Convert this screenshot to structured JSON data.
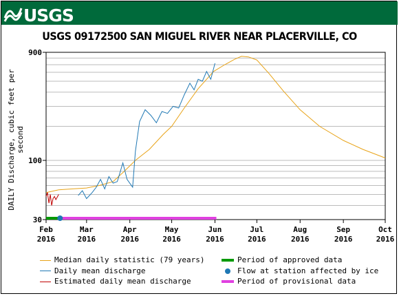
{
  "banner": {
    "logo_text": "USGS"
  },
  "chart_data": {
    "type": "line",
    "title": "USGS 09172500 SAN MIGUEL RIVER NEAR PLACERVILLE, CO",
    "ylabel": "DAILY Discharge, cubic feet per second",
    "xlabel": "",
    "yscale": "log",
    "ylim": [
      30,
      900
    ],
    "y_ticks": [
      "900",
      "100",
      "30"
    ],
    "x_ticks": [
      {
        "month": "Feb",
        "year": "2016"
      },
      {
        "month": "Mar",
        "year": "2016"
      },
      {
        "month": "Apr",
        "year": "2016"
      },
      {
        "month": "May",
        "year": "2016"
      },
      {
        "month": "Jun",
        "year": "2016"
      },
      {
        "month": "Jul",
        "year": "2016"
      },
      {
        "month": "Aug",
        "year": "2016"
      },
      {
        "month": "Sep",
        "year": "2016"
      },
      {
        "month": "Oct",
        "year": "2016"
      }
    ],
    "xlim": [
      "2016-02-01",
      "2016-10-01"
    ],
    "grid": true,
    "series": [
      {
        "name": "Median daily statistic (79 years)",
        "color": "#e8a317",
        "points": [
          [
            "2016-02-01",
            52
          ],
          [
            "2016-02-10",
            55
          ],
          [
            "2016-02-20",
            56
          ],
          [
            "2016-03-01",
            57
          ],
          [
            "2016-03-10",
            60
          ],
          [
            "2016-03-20",
            65
          ],
          [
            "2016-03-28",
            80
          ],
          [
            "2016-04-05",
            100
          ],
          [
            "2016-04-15",
            125
          ],
          [
            "2016-04-25",
            170
          ],
          [
            "2016-05-01",
            200
          ],
          [
            "2016-05-10",
            290
          ],
          [
            "2016-05-20",
            430
          ],
          [
            "2016-05-31",
            610
          ],
          [
            "2016-06-08",
            700
          ],
          [
            "2016-06-15",
            780
          ],
          [
            "2016-06-20",
            830
          ],
          [
            "2016-06-25",
            820
          ],
          [
            "2016-07-01",
            770
          ],
          [
            "2016-07-10",
            580
          ],
          [
            "2016-07-20",
            410
          ],
          [
            "2016-08-01",
            280
          ],
          [
            "2016-08-15",
            200
          ],
          [
            "2016-09-01",
            150
          ],
          [
            "2016-09-15",
            125
          ],
          [
            "2016-10-01",
            105
          ]
        ]
      },
      {
        "name": "Daily mean discharge",
        "color": "#1f78b4",
        "points": [
          [
            "2016-02-24",
            49
          ],
          [
            "2016-02-27",
            54
          ],
          [
            "2016-03-01",
            46
          ],
          [
            "2016-03-05",
            52
          ],
          [
            "2016-03-08",
            58
          ],
          [
            "2016-03-11",
            68
          ],
          [
            "2016-03-14",
            56
          ],
          [
            "2016-03-17",
            72
          ],
          [
            "2016-03-20",
            63
          ],
          [
            "2016-03-23",
            65
          ],
          [
            "2016-03-27",
            95
          ],
          [
            "2016-03-30",
            68
          ],
          [
            "2016-04-03",
            58
          ],
          [
            "2016-04-05",
            120
          ],
          [
            "2016-04-08",
            220
          ],
          [
            "2016-04-12",
            280
          ],
          [
            "2016-04-16",
            250
          ],
          [
            "2016-04-20",
            215
          ],
          [
            "2016-04-24",
            270
          ],
          [
            "2016-04-28",
            260
          ],
          [
            "2016-05-02",
            300
          ],
          [
            "2016-05-06",
            290
          ],
          [
            "2016-05-10",
            380
          ],
          [
            "2016-05-14",
            480
          ],
          [
            "2016-05-17",
            420
          ],
          [
            "2016-05-20",
            520
          ],
          [
            "2016-05-23",
            500
          ],
          [
            "2016-05-26",
            610
          ],
          [
            "2016-05-29",
            520
          ],
          [
            "2016-06-01",
            720
          ]
        ]
      },
      {
        "name": "Estimated daily mean discharge",
        "color": "#c00000",
        "points": [
          [
            "2016-02-01",
            48
          ],
          [
            "2016-02-02",
            52
          ],
          [
            "2016-02-03",
            42
          ],
          [
            "2016-02-04",
            50
          ],
          [
            "2016-02-05",
            40
          ],
          [
            "2016-02-06",
            46
          ],
          [
            "2016-02-07",
            48
          ],
          [
            "2016-02-08",
            45
          ],
          [
            "2016-02-10",
            50
          ]
        ]
      }
    ],
    "periods": [
      {
        "name": "Period of approved data",
        "color": "#009900",
        "start": "2016-02-01",
        "end": "2016-02-10"
      },
      {
        "name": "Period of provisional data",
        "color": "#e040e0",
        "start": "2016-02-10",
        "end": "2016-06-02"
      }
    ],
    "markers": [
      {
        "name": "Flow at station affected by ice",
        "color": "#1f78b4",
        "date": "2016-02-11"
      }
    ]
  },
  "legend": {
    "left": [
      {
        "label": "Median daily statistic (79 years)",
        "color": "#e8a317",
        "kind": "line"
      },
      {
        "label": "Daily mean discharge",
        "color": "#1f78b4",
        "kind": "line"
      },
      {
        "label": "Estimated daily mean discharge",
        "color": "#c00000",
        "kind": "line"
      }
    ],
    "right": [
      {
        "label": "Period of approved data",
        "color": "#009900",
        "kind": "bar"
      },
      {
        "label": "Flow at station affected by ice",
        "color": "#1f78b4",
        "kind": "dot"
      },
      {
        "label": "Period of provisional data",
        "color": "#e040e0",
        "kind": "bar"
      }
    ]
  }
}
